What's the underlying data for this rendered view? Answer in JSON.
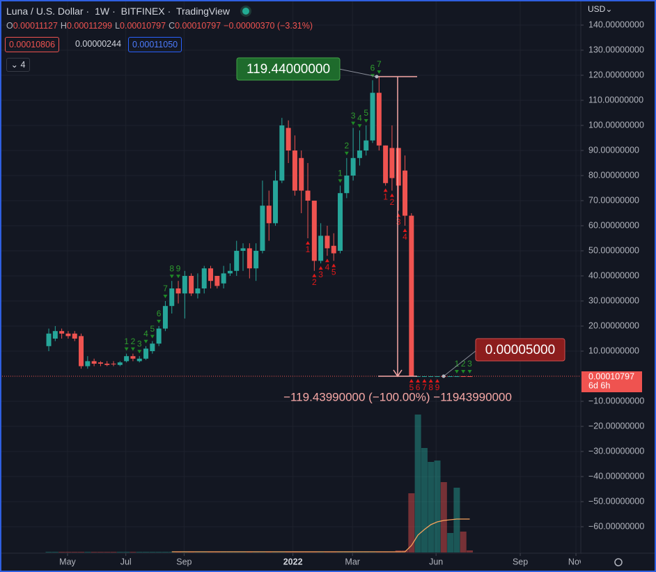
{
  "header": {
    "pair": "Luna / U.S. Dollar",
    "interval": "1W",
    "exchange": "BITFINEX",
    "source": "TradingView",
    "ohlc": [
      {
        "key": "O",
        "value": "0.00011127"
      },
      {
        "key": "H",
        "value": "0.00011299"
      },
      {
        "key": "L",
        "value": "0.00010797"
      },
      {
        "key": "C",
        "value": "0.00010797"
      }
    ],
    "change": "−0.00000370 (−3.31%)",
    "bid": "0.00010806",
    "spread": "0.00000244",
    "ask": "0.00011050",
    "indicator_count": "4",
    "currency": "USD"
  },
  "chart_data": {
    "type": "candlestick",
    "up_color": "#26a69a",
    "down_color": "#ef5350",
    "xlim": [
      -7.53,
      82.04
    ],
    "xticks": [
      {
        "value": 2.9,
        "label": "May"
      },
      {
        "value": 11.9,
        "label": "Jul"
      },
      {
        "value": 20.9,
        "label": "Sep"
      },
      {
        "value": 37.7,
        "label": "2022"
      },
      {
        "value": 46.9,
        "label": "Mar"
      },
      {
        "value": 59.8,
        "label": "Jun"
      },
      {
        "value": 72.8,
        "label": "Sep"
      },
      {
        "value": 81.4,
        "label": "Nov"
      }
    ],
    "ylim": [
      -70.28,
      150
    ],
    "yticks": [
      {
        "value": 140,
        "label": "140.00000000"
      },
      {
        "value": 130,
        "label": "130.00000000"
      },
      {
        "value": 120,
        "label": "120.00000000"
      },
      {
        "value": 110,
        "label": "110.00000000"
      },
      {
        "value": 100,
        "label": "100.00000000"
      },
      {
        "value": 90,
        "label": "90.00000000"
      },
      {
        "value": 80,
        "label": "80.00000000"
      },
      {
        "value": 70,
        "label": "70.00000000"
      },
      {
        "value": 60,
        "label": "60.00000000"
      },
      {
        "value": 50,
        "label": "50.00000000"
      },
      {
        "value": 40,
        "label": "40.00000000"
      },
      {
        "value": 30,
        "label": "30.00000000"
      },
      {
        "value": 20,
        "label": "20.00000000"
      },
      {
        "value": 10,
        "label": "10.00000000"
      },
      {
        "value": -10,
        "label": "−10.00000000"
      },
      {
        "value": -20,
        "label": "−20.00000000"
      },
      {
        "value": -30,
        "label": "−30.00000000"
      },
      {
        "value": -40,
        "label": "−40.00000000"
      },
      {
        "value": -50,
        "label": "−50.00000000"
      },
      {
        "value": -60,
        "label": "−60.00000000"
      }
    ],
    "open": [
      12,
      15,
      18,
      17,
      17,
      16,
      4,
      6,
      5.5,
      5,
      5,
      4.5,
      6,
      8,
      6,
      7,
      10,
      13,
      19,
      28,
      35,
      33,
      40,
      33,
      35,
      43,
      40,
      37,
      41,
      42,
      50,
      51,
      43,
      50,
      68,
      61,
      78,
      99,
      90,
      87,
      74,
      70,
      46,
      56,
      52,
      50,
      73,
      80,
      87,
      90,
      94,
      113,
      92,
      91,
      91,
      82,
      64,
      0.0002,
      0.0002,
      0.0002,
      0.0002,
      0.0002,
      0.0001,
      0.0001,
      0.00011127,
      0.00011127
    ],
    "high": [
      19,
      20,
      19,
      18,
      18,
      17,
      8,
      7,
      6,
      6,
      6,
      6,
      9,
      9,
      8,
      12,
      14,
      20,
      30,
      38,
      38,
      42,
      41,
      41,
      44,
      44,
      40,
      44,
      45,
      54,
      53,
      53,
      53,
      78,
      74,
      82,
      103,
      102,
      96,
      90,
      85,
      70,
      61,
      60,
      57,
      76,
      87,
      99,
      98,
      100,
      118,
      119.44,
      92,
      100,
      91,
      88,
      65,
      0.002,
      0.0005,
      0.0004,
      0.0004,
      0.0003,
      0.0003,
      0.0003,
      0.00011299,
      0.00011299
    ],
    "low": [
      10,
      14,
      15,
      15,
      14,
      3,
      3,
      4,
      4,
      4,
      4,
      4,
      5.5,
      6,
      5.5,
      6.5,
      9,
      12,
      18,
      25,
      29,
      23,
      32,
      31,
      33,
      35,
      35,
      35,
      40,
      40,
      42,
      39,
      38,
      49,
      54,
      60,
      77,
      85,
      72,
      65,
      55,
      42,
      45,
      48,
      46,
      49,
      71,
      78,
      84,
      88,
      93,
      90,
      76,
      74,
      66,
      60,
      0.0001,
      0.0001,
      0.0001,
      0.0001,
      0.0001,
      0.0001,
      0.0001,
      0.0001,
      0.00010797,
      0.00010797
    ],
    "close": [
      17,
      18,
      17,
      16,
      15,
      4,
      6,
      5,
      5,
      4.5,
      4.8,
      5.5,
      8,
      7,
      7,
      11,
      13,
      19,
      28,
      35,
      33,
      40,
      33,
      35,
      43,
      38,
      36,
      41,
      42,
      50,
      51,
      43,
      50,
      68,
      61,
      78,
      100,
      90,
      74,
      74,
      70,
      46,
      56,
      51,
      49,
      73,
      80,
      87,
      90,
      94,
      113,
      92,
      77,
      79,
      76,
      64,
      0.0002,
      0.0002,
      0.0002,
      0.0002,
      0.0002,
      0.0001,
      0.0002,
      0.0002,
      0.00010797,
      0.00010797
    ],
    "volume_lim": [
      0,
      210
    ],
    "volume": [
      1,
      1,
      1,
      1,
      1,
      1,
      1,
      1,
      1,
      1,
      1,
      1,
      1,
      1,
      1,
      1,
      1,
      1,
      1,
      1,
      1,
      1,
      1,
      1,
      1,
      1,
      1,
      1,
      1,
      1,
      1,
      1,
      1,
      1,
      1,
      1,
      1,
      1,
      1,
      1,
      1,
      1,
      1,
      1,
      1,
      1,
      1,
      1,
      1,
      1,
      1,
      1,
      1,
      1,
      3,
      3,
      85,
      198,
      150,
      130,
      132,
      101,
      28,
      93,
      30,
      3
    ],
    "volume_ma": [
      null,
      null,
      null,
      null,
      null,
      null,
      null,
      null,
      null,
      null,
      null,
      null,
      null,
      null,
      null,
      null,
      null,
      null,
      null,
      1,
      1,
      1,
      1,
      1,
      1,
      1,
      1,
      1,
      1,
      1,
      1,
      1,
      1,
      1,
      1,
      1,
      1,
      1,
      1,
      1,
      1,
      1,
      1,
      1,
      1,
      1,
      1,
      1,
      1,
      1,
      1,
      1,
      1,
      1,
      1,
      1,
      10,
      25,
      33,
      40,
      44,
      46,
      47,
      48,
      48,
      48
    ],
    "volume_ma_color": "#f7a35c",
    "td_labels": [
      {
        "index": 12,
        "text": "1",
        "side": "up"
      },
      {
        "index": 13,
        "text": "2",
        "side": "up"
      },
      {
        "index": 14,
        "text": "3",
        "side": "up"
      },
      {
        "index": 15,
        "text": "4",
        "side": "up"
      },
      {
        "index": 16,
        "text": "5",
        "side": "up"
      },
      {
        "index": 17,
        "text": "6",
        "side": "up"
      },
      {
        "index": 18,
        "text": "7",
        "side": "up"
      },
      {
        "index": 19,
        "text": "8",
        "side": "up"
      },
      {
        "index": 20,
        "text": "9",
        "side": "up"
      },
      {
        "index": 40,
        "text": "1",
        "side": "down"
      },
      {
        "index": 41,
        "text": "2",
        "side": "down"
      },
      {
        "index": 42,
        "text": "3",
        "side": "down"
      },
      {
        "index": 43,
        "text": "4",
        "side": "down"
      },
      {
        "index": 44,
        "text": "5",
        "side": "down"
      },
      {
        "index": 45,
        "text": "1",
        "side": "up"
      },
      {
        "index": 46,
        "text": "2",
        "side": "up"
      },
      {
        "index": 47,
        "text": "3",
        "side": "up"
      },
      {
        "index": 48,
        "text": "4",
        "side": "up"
      },
      {
        "index": 49,
        "text": "5",
        "side": "up"
      },
      {
        "index": 50,
        "text": "6",
        "side": "up"
      },
      {
        "index": 51,
        "text": "7",
        "side": "up"
      },
      {
        "index": 52,
        "text": "1",
        "side": "down"
      },
      {
        "index": 53,
        "text": "2",
        "side": "down"
      },
      {
        "index": 54,
        "text": "3",
        "side": "down"
      },
      {
        "index": 55,
        "text": "4",
        "side": "down"
      },
      {
        "index": 56,
        "text": "5",
        "side": "down"
      },
      {
        "index": 57,
        "text": "6",
        "side": "down"
      },
      {
        "index": 58,
        "text": "7",
        "side": "down"
      },
      {
        "index": 59,
        "text": "8",
        "side": "down"
      },
      {
        "index": 60,
        "text": "9",
        "side": "down"
      },
      {
        "index": 63,
        "text": "1",
        "side": "up"
      },
      {
        "index": 64,
        "text": "2",
        "side": "up"
      },
      {
        "index": 65,
        "text": "3",
        "side": "up"
      }
    ],
    "measure": {
      "from": 119.44,
      "to": 5e-05,
      "from_label": "119.44000000",
      "to_label": "0.00005000",
      "change_label": "−119.43990000 (−100.00%) −11943990000"
    },
    "last_price": 0.00010797,
    "last_price_label": "0.00010797",
    "countdown": "6d 6h"
  }
}
